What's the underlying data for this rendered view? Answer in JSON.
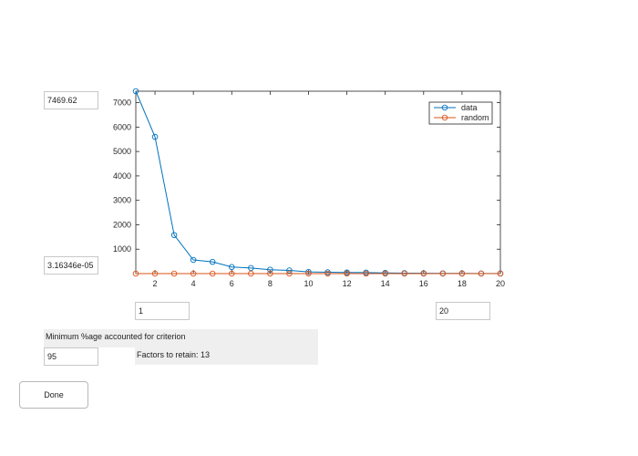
{
  "fields": {
    "ymax_value": "7469.62",
    "ymin_value": "3.16346e-05",
    "xmin_value": "1",
    "xmax_value": "20",
    "criterion_value": "95"
  },
  "labels": {
    "criterion_label": "Minimum %age accounted for criterion",
    "factors_retain": "Factors to retain: 13"
  },
  "buttons": {
    "done_label": "Done"
  },
  "colors": {
    "data": "#0072bd",
    "random": "#d95319"
  },
  "chart_data": {
    "type": "line",
    "x": [
      1,
      2,
      3,
      4,
      5,
      6,
      7,
      8,
      9,
      10,
      11,
      12,
      13,
      14,
      15,
      16,
      17,
      18,
      19,
      20
    ],
    "series": [
      {
        "name": "data",
        "values": [
          7469.62,
          5600,
          1580,
          560,
          480,
          270,
          230,
          160,
          130,
          70,
          55,
          45,
          40,
          30,
          20,
          15,
          10,
          8,
          5,
          3
        ]
      },
      {
        "name": "random",
        "values": [
          0,
          0,
          0,
          0,
          0,
          0,
          0,
          0,
          0,
          0,
          0,
          0,
          0,
          0,
          0,
          0,
          0,
          0,
          0,
          0
        ]
      }
    ],
    "xlim": [
      1,
      20
    ],
    "ylim": [
      0,
      7469.62
    ],
    "xticks": [
      2,
      4,
      6,
      8,
      10,
      12,
      14,
      16,
      18,
      20
    ],
    "yticks": [
      1000,
      2000,
      3000,
      4000,
      5000,
      6000,
      7000
    ],
    "legend": [
      "data",
      "random"
    ],
    "legend_position": "top-right",
    "grid": false
  }
}
